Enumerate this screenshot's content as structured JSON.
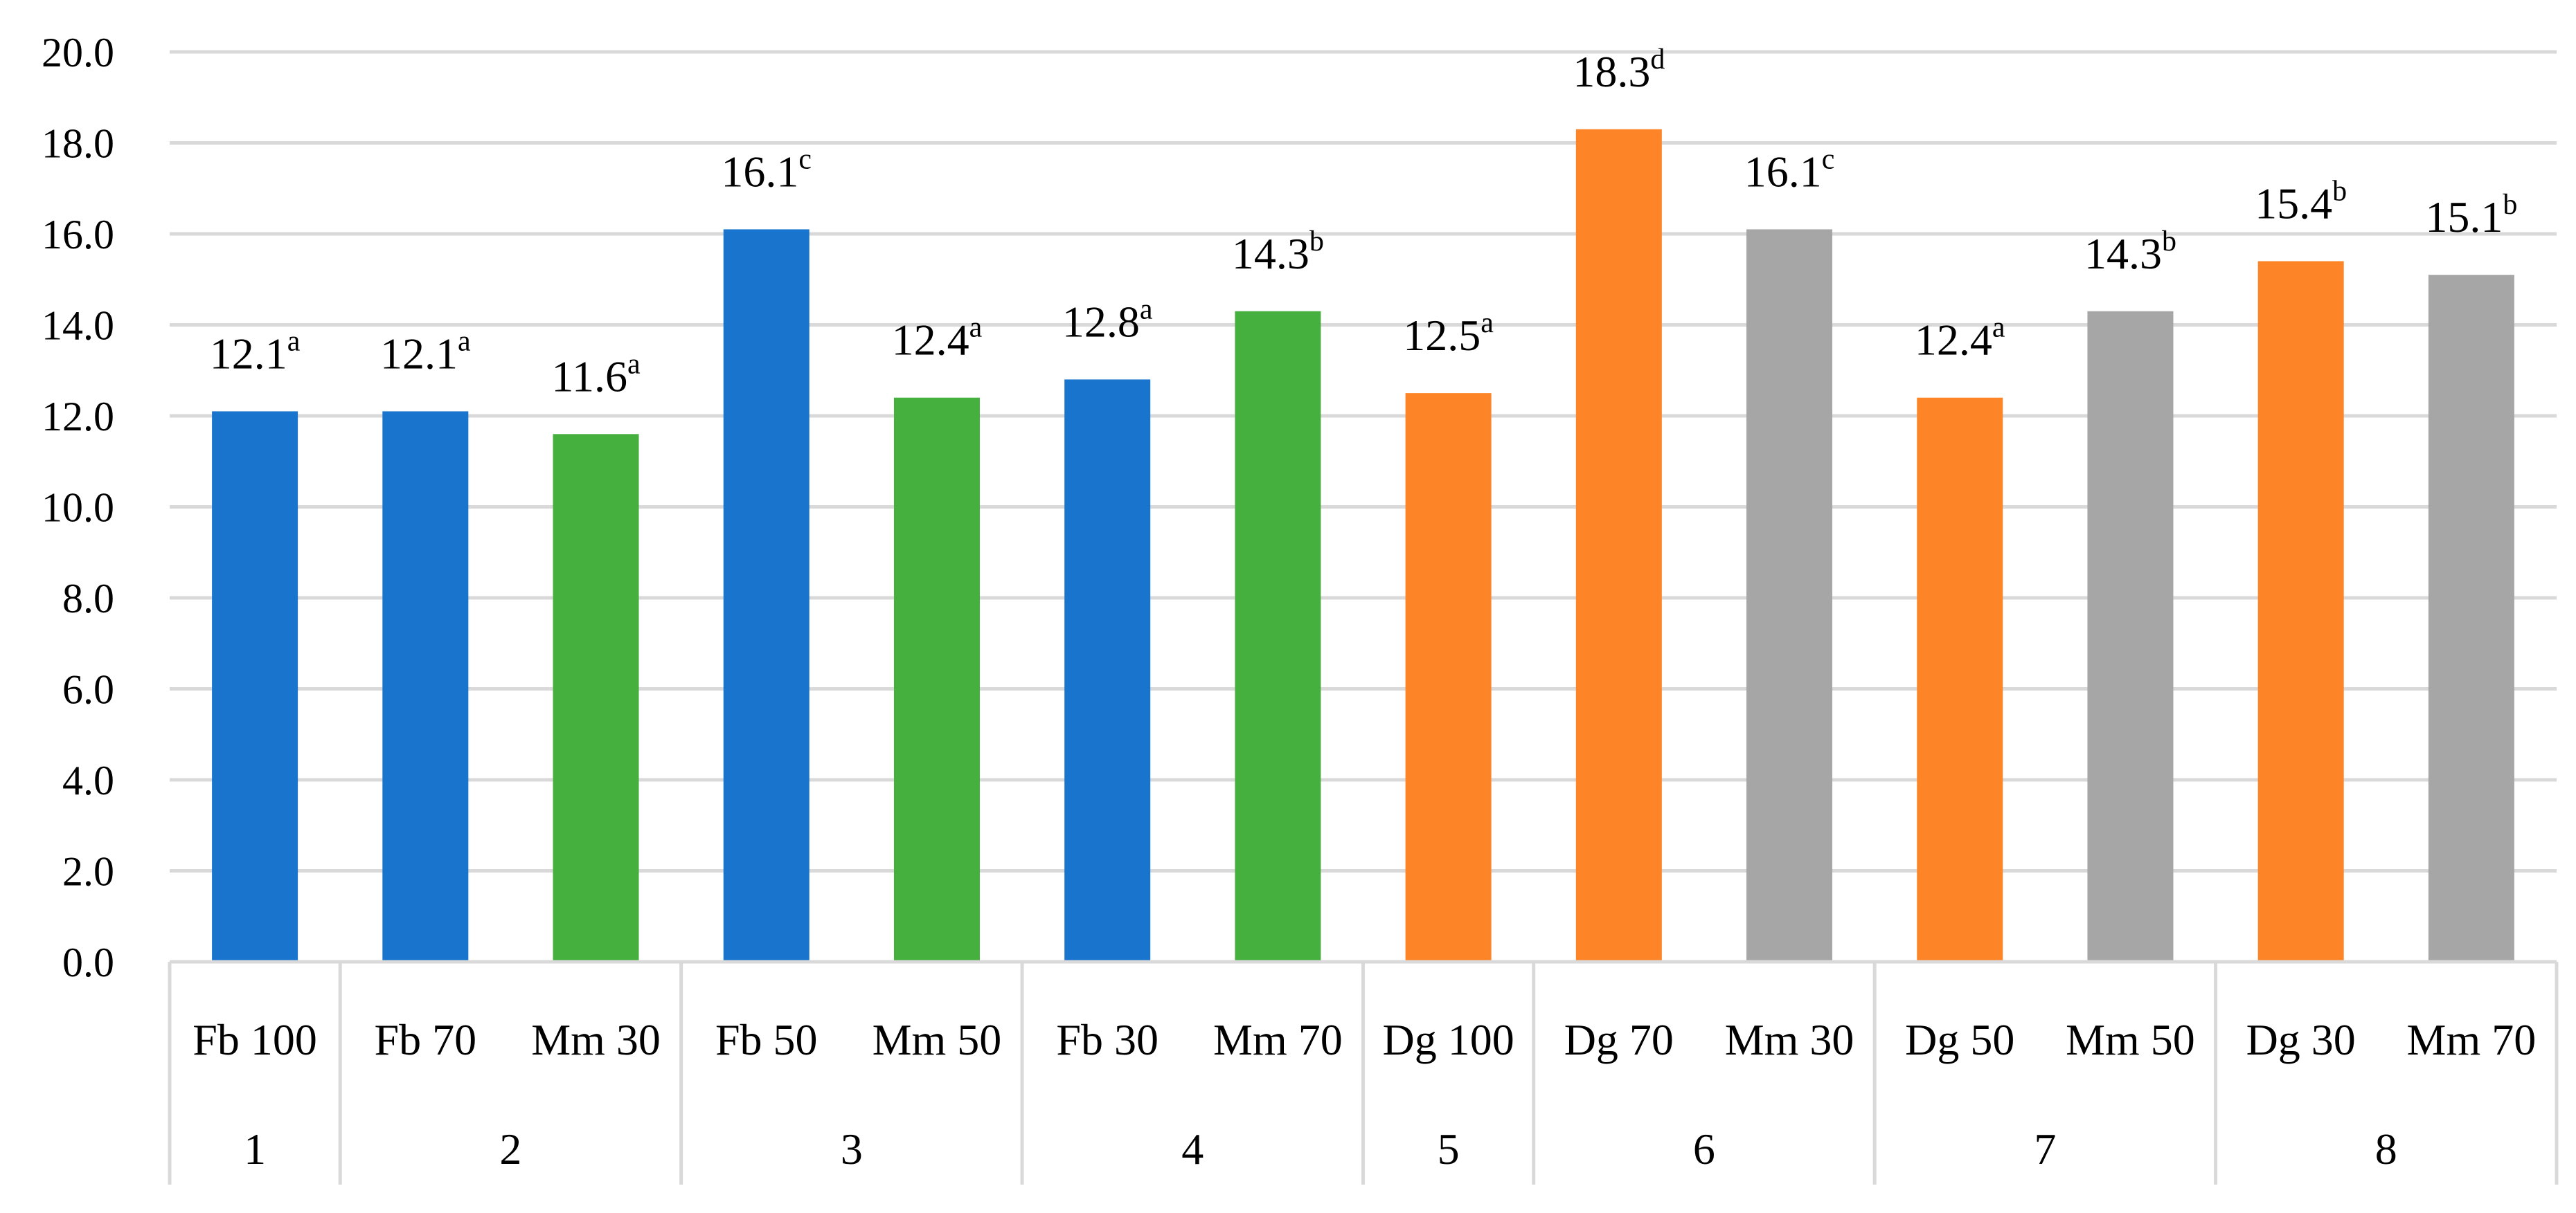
{
  "chart_data": {
    "type": "bar",
    "title": "",
    "xlabel": "",
    "ylabel": "",
    "ylim": [
      0,
      20
    ],
    "ytick_step": 2,
    "y_ticks": [
      "0.0",
      "2.0",
      "4.0",
      "6.0",
      "8.0",
      "10.0",
      "12.0",
      "14.0",
      "16.0",
      "18.0",
      "20.0"
    ],
    "grid": true,
    "legend": "none",
    "colors": {
      "Fb": "#1874cd",
      "Mm": "#45b03e",
      "Dg": "#fd8527",
      "Mm_dg": "#a6a6a6"
    },
    "bars": [
      {
        "label": "Fb 100",
        "value": 12.1,
        "letter": "a",
        "group": 0,
        "color": "#1874cd"
      },
      {
        "label": "Fb 70",
        "value": 12.1,
        "letter": "a",
        "group": 1,
        "color": "#1874cd"
      },
      {
        "label": "Mm 30",
        "value": 11.6,
        "letter": "a",
        "group": 1,
        "color": "#45b03e"
      },
      {
        "label": "Fb 50",
        "value": 16.1,
        "letter": "c",
        "group": 2,
        "color": "#1874cd"
      },
      {
        "label": "Mm 50",
        "value": 12.4,
        "letter": "a",
        "group": 2,
        "color": "#45b03e"
      },
      {
        "label": "Fb 30",
        "value": 12.8,
        "letter": "a",
        "group": 3,
        "color": "#1874cd"
      },
      {
        "label": "Mm 70",
        "value": 14.3,
        "letter": "b",
        "group": 3,
        "color": "#45b03e"
      },
      {
        "label": "Dg 100",
        "value": 12.5,
        "letter": "a",
        "group": 4,
        "color": "#fd8527"
      },
      {
        "label": "Dg 70",
        "value": 18.3,
        "letter": "d",
        "group": 5,
        "color": "#fd8527"
      },
      {
        "label": "Mm 30",
        "value": 16.1,
        "letter": "c",
        "group": 5,
        "color": "#a6a6a6"
      },
      {
        "label": "Dg 50",
        "value": 12.4,
        "letter": "a",
        "group": 6,
        "color": "#fd8527"
      },
      {
        "label": "Mm 50",
        "value": 14.3,
        "letter": "b",
        "group": 6,
        "color": "#a6a6a6"
      },
      {
        "label": "Dg 30",
        "value": 15.4,
        "letter": "b",
        "group": 7,
        "color": "#fd8527"
      },
      {
        "label": "Mm 70",
        "value": 15.1,
        "letter": "b",
        "group": 7,
        "color": "#a6a6a6"
      }
    ],
    "groups": [
      "1",
      "2",
      "3",
      "4",
      "5",
      "6",
      "7",
      "8"
    ]
  }
}
